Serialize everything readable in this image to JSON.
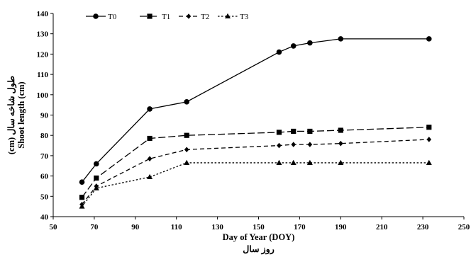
{
  "chart_data": {
    "type": "line",
    "xlabel": "Day of Year (DOY)",
    "xlabel_secondary": "روز سال",
    "ylabel": "Shoot length (cm)",
    "ylabel_secondary": "طول شاخه سال (cm)",
    "xlim": [
      50,
      250
    ],
    "ylim": [
      40,
      140
    ],
    "xticks": [
      50,
      70,
      90,
      110,
      130,
      150,
      170,
      190,
      210,
      230,
      250
    ],
    "yticks": [
      40,
      50,
      60,
      70,
      80,
      90,
      100,
      110,
      120,
      130,
      140
    ],
    "grid": false,
    "legend_position": "top-left",
    "series": [
      {
        "name": "T0",
        "marker": "circle",
        "line_style": "solid",
        "x": [
          64,
          71,
          97,
          115,
          160,
          167,
          175,
          190,
          233
        ],
        "y": [
          57,
          66,
          93,
          96.5,
          121,
          124,
          125.5,
          127.5,
          127.5
        ]
      },
      {
        "name": "T1",
        "marker": "square",
        "line_style": "long-dash",
        "x": [
          64,
          71,
          97,
          115,
          160,
          167,
          175,
          190,
          233
        ],
        "y": [
          49.5,
          59,
          78.5,
          80,
          81.5,
          82,
          82,
          82.5,
          84
        ]
      },
      {
        "name": "T2",
        "marker": "diamond",
        "line_style": "dash",
        "x": [
          64,
          71,
          97,
          115,
          160,
          167,
          175,
          190,
          233
        ],
        "y": [
          46,
          55,
          68.5,
          73,
          75,
          75.5,
          75.5,
          76,
          78
        ]
      },
      {
        "name": "T3",
        "marker": "triangle",
        "line_style": "dot",
        "x": [
          64,
          71,
          97,
          115,
          160,
          167,
          175,
          190,
          233
        ],
        "y": [
          45,
          54,
          59.5,
          66.5,
          66.5,
          66.5,
          66.5,
          66.5,
          66.5
        ]
      }
    ]
  }
}
